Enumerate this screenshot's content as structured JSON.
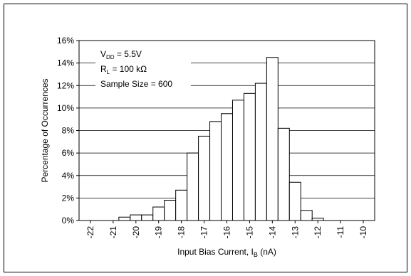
{
  "chart_data": {
    "type": "bar",
    "title": "",
    "xlabel": "Input Bias Current, I",
    "xlabel_sub": "B",
    "xlabel_unit": " (nA)",
    "ylabel": "Percentage of Occurrences",
    "xlim": [
      -22.5,
      -9.5
    ],
    "ylim": [
      0,
      16
    ],
    "bin_width": 0.5,
    "grid": "horizontal",
    "y_ticks": [
      0,
      2,
      4,
      6,
      8,
      10,
      12,
      14,
      16
    ],
    "y_tick_labels": [
      "0%",
      "2%",
      "4%",
      "6%",
      "8%",
      "10%",
      "12%",
      "14%",
      "16%"
    ],
    "x_ticks": [
      -22,
      -21,
      -20,
      -19,
      -18,
      -17,
      -16,
      -15,
      -14,
      -13,
      -12,
      -11,
      -10
    ],
    "x_tick_labels": [
      "-22",
      "-21",
      "-20",
      "-19",
      "-18",
      "-17",
      "-16",
      "-15",
      "-14",
      "-13",
      "-12",
      "-11",
      "-10"
    ],
    "bins": [
      {
        "x": -20.5,
        "value": 0.3
      },
      {
        "x": -20.0,
        "value": 0.5
      },
      {
        "x": -19.5,
        "value": 0.5
      },
      {
        "x": -19.0,
        "value": 1.2
      },
      {
        "x": -18.5,
        "value": 1.8
      },
      {
        "x": -18.0,
        "value": 2.7
      },
      {
        "x": -17.5,
        "value": 6.0
      },
      {
        "x": -17.0,
        "value": 7.5
      },
      {
        "x": -16.5,
        "value": 8.8
      },
      {
        "x": -16.0,
        "value": 9.5
      },
      {
        "x": -15.5,
        "value": 10.7
      },
      {
        "x": -15.0,
        "value": 11.3
      },
      {
        "x": -14.5,
        "value": 12.2
      },
      {
        "x": -14.0,
        "value": 14.5
      },
      {
        "x": -13.5,
        "value": 8.2
      },
      {
        "x": -13.0,
        "value": 3.4
      },
      {
        "x": -12.5,
        "value": 0.9
      },
      {
        "x": -12.0,
        "value": 0.2
      }
    ],
    "annotations": [
      {
        "main": "V",
        "sub": "DD",
        "rest": " = 5.5V"
      },
      {
        "main": "R",
        "sub": "L",
        "rest": " = 100 kΩ"
      },
      {
        "main": "Sample Size = 600",
        "sub": "",
        "rest": ""
      }
    ],
    "colors": {
      "bar_fill": "#ffffff",
      "bar_stroke": "#000000",
      "grid": "#000000",
      "frame": "#000000"
    }
  }
}
